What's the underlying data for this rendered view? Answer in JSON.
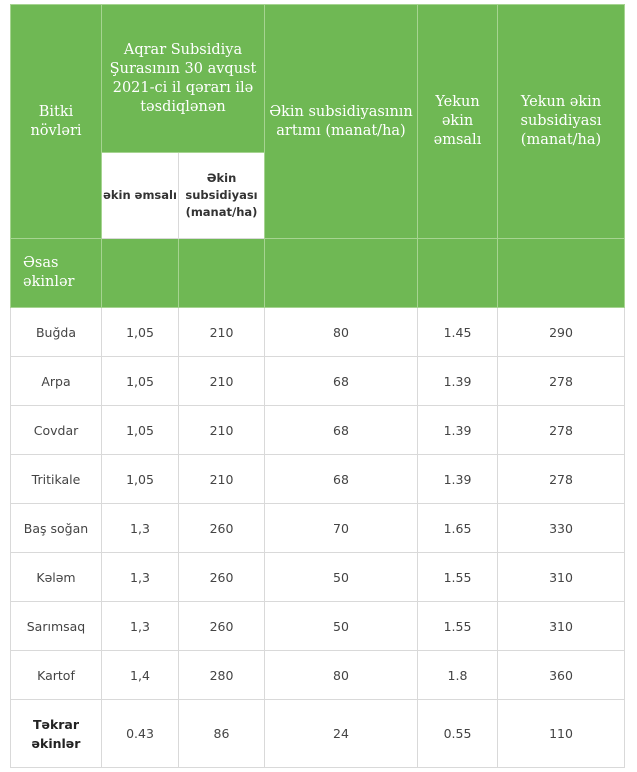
{
  "headers": {
    "col_crop": "Bitki növləri",
    "group_title": "Aqrar Subsidiya Şurasının 30 avqust 2021-ci il qərarı ilə təsdiqlənən",
    "sub_coef": "əkin əmsalı",
    "sub_subsidy": "Əkin subsidiyası (manat/ha)",
    "col_increase": "Əkin subsidiyasının artımı (manat/ha)",
    "col_final_coef": "Yekun əkin əmsalı",
    "col_final_subsidy": "Yekun əkin subsidiyası (manat/ha)"
  },
  "section_label": "Əsas əkinlər",
  "rows": [
    {
      "crop": "Buğda",
      "coef": "1,05",
      "subsidy": "210",
      "increase": "80",
      "final_coef": "1.45",
      "final_subsidy": "290"
    },
    {
      "crop": "Arpa",
      "coef": "1,05",
      "subsidy": "210",
      "increase": "68",
      "final_coef": "1.39",
      "final_subsidy": "278"
    },
    {
      "crop": "Covdar",
      "coef": "1,05",
      "subsidy": "210",
      "increase": "68",
      "final_coef": "1.39",
      "final_subsidy": "278"
    },
    {
      "crop": "Tritikale",
      "coef": "1,05",
      "subsidy": "210",
      "increase": "68",
      "final_coef": "1.39",
      "final_subsidy": "278"
    },
    {
      "crop": "Baş soğan",
      "coef": "1,3",
      "subsidy": "260",
      "increase": "70",
      "final_coef": "1.65",
      "final_subsidy": "330"
    },
    {
      "crop": "Kələm",
      "coef": "1,3",
      "subsidy": "260",
      "increase": "50",
      "final_coef": "1.55",
      "final_subsidy": "310"
    },
    {
      "crop": "Sarımsaq",
      "coef": "1,3",
      "subsidy": "260",
      "increase": "50",
      "final_coef": "1.55",
      "final_subsidy": "310"
    },
    {
      "crop": "Kartof",
      "coef": "1,4",
      "subsidy": "280",
      "increase": "80",
      "final_coef": "1.8",
      "final_subsidy": "360"
    },
    {
      "crop": "Təkrar əkinlər",
      "coef": "0.43",
      "subsidy": "86",
      "increase": "24",
      "final_coef": "0.55",
      "final_subsidy": "110",
      "bold": true
    }
  ],
  "colors": {
    "header_green": "#6fb854",
    "border": "#d9d9d9"
  }
}
